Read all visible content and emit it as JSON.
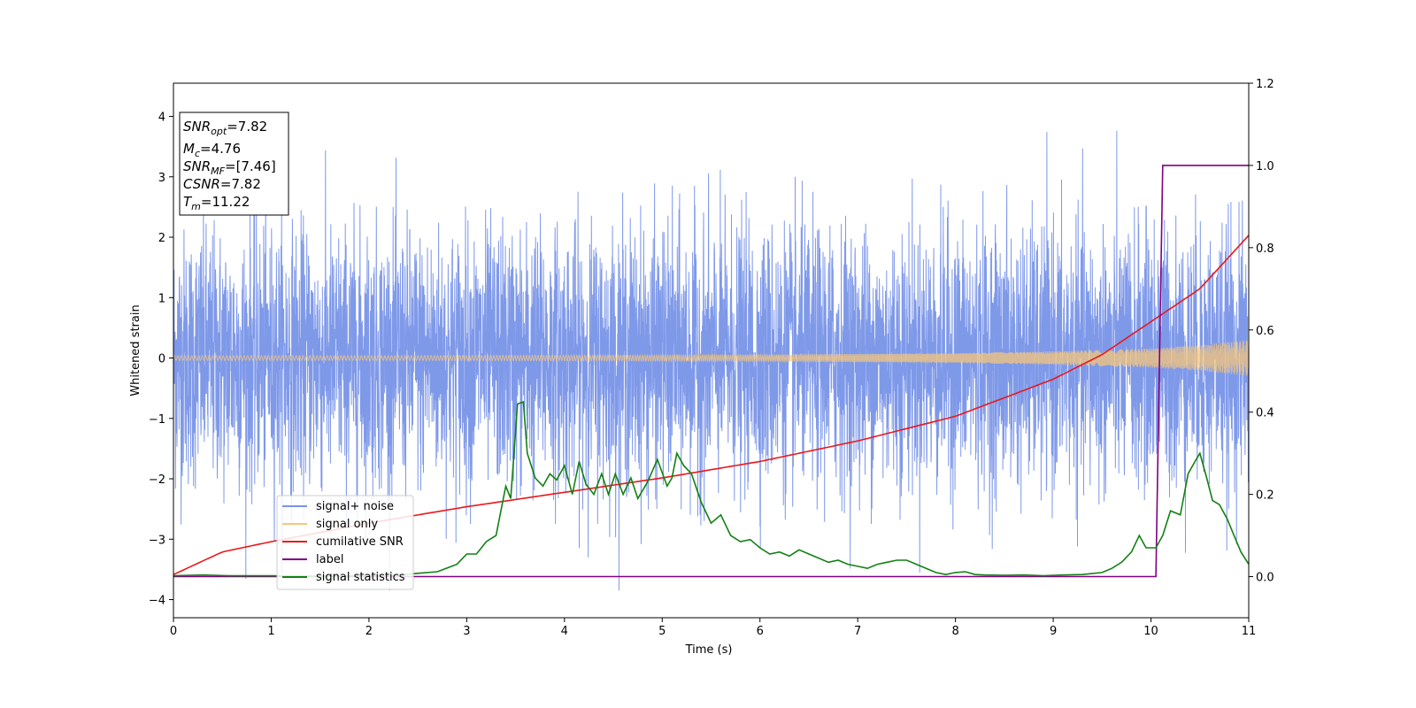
{
  "chart_data": {
    "type": "line",
    "xlabel": "Time (s)",
    "ylabel": "Whitened strain",
    "xlim": [
      0,
      11
    ],
    "ylim": [
      -4.3,
      4.55
    ],
    "y2lim": [
      -0.1,
      1.2
    ],
    "x_ticks": [
      0,
      1,
      2,
      3,
      4,
      5,
      6,
      7,
      8,
      9,
      10,
      11
    ],
    "x_tick_labels": [
      "0",
      "1",
      "2",
      "3",
      "4",
      "5",
      "6",
      "7",
      "8",
      "9",
      "10",
      "11"
    ],
    "y_ticks": [
      -4,
      -3,
      -2,
      -1,
      0,
      1,
      2,
      3,
      4
    ],
    "y_tick_labels": [
      "−4",
      "−3",
      "−2",
      "−1",
      "0",
      "1",
      "2",
      "3",
      "4"
    ],
    "y2_ticks": [
      0,
      0.2,
      0.4,
      0.6,
      0.8,
      1.0,
      1.2
    ],
    "y2_tick_labels": [
      "0.0",
      "0.2",
      "0.4",
      "0.6",
      "0.8",
      "1.0",
      "1.2"
    ],
    "grid": false,
    "legend_placement": "lower-left",
    "info_box": {
      "line1_base": "SNR",
      "line1_sub": "opt",
      "line1_value": "=7.82",
      "line2_base": "M",
      "line2_sub": "c",
      "line2_value": "=4.76",
      "line3_base": "SNR",
      "line3_sub": "MF",
      "line3_value": "=[7.46]",
      "line4_base": "CSNR",
      "line4_value": "=7.82",
      "line5_base": "T",
      "line5_sub": "m",
      "line5_value": "=11.22"
    },
    "series": [
      {
        "name": "signal+ noise",
        "axis": "left",
        "color": "#7894e8",
        "description_values": {
          "typical_range": [
            -2.2,
            2.2
          ],
          "max_peak": 4.15,
          "min_trough": -3.85
        }
      },
      {
        "name": "signal only",
        "axis": "left",
        "color": "#f5c77a",
        "amplitude_envelope": {
          "x": [
            0,
            2,
            4,
            6,
            8,
            9,
            10,
            10.5,
            11
          ],
          "amp": [
            0.04,
            0.04,
            0.045,
            0.055,
            0.08,
            0.11,
            0.16,
            0.21,
            0.3
          ]
        }
      },
      {
        "name": "cumilative SNR",
        "axis": "right",
        "color": "#e8191c",
        "x": [
          0,
          0.5,
          1,
          2,
          3,
          4,
          5,
          6,
          7,
          8,
          9,
          9.5,
          10,
          10.5,
          11
        ],
        "y": [
          0.005,
          0.06,
          0.085,
          0.13,
          0.17,
          0.205,
          0.24,
          0.28,
          0.33,
          0.39,
          0.48,
          0.54,
          0.62,
          0.7,
          0.83
        ]
      },
      {
        "name": "label",
        "axis": "right",
        "color": "#800080",
        "x": [
          0,
          10.05,
          10.12,
          11
        ],
        "y": [
          0,
          0,
          1,
          1
        ]
      },
      {
        "name": "signal statistics",
        "axis": "right",
        "color": "#138013",
        "x": [
          0,
          0.3,
          0.6,
          1,
          1.5,
          2,
          2.3,
          2.5,
          2.7,
          2.9,
          3.0,
          3.1,
          3.2,
          3.3,
          3.4,
          3.45,
          3.52,
          3.58,
          3.62,
          3.7,
          3.78,
          3.85,
          3.92,
          4.0,
          4.08,
          4.15,
          4.22,
          4.3,
          4.38,
          4.45,
          4.52,
          4.6,
          4.68,
          4.75,
          4.85,
          4.95,
          5.05,
          5.1,
          5.15,
          5.22,
          5.3,
          5.4,
          5.5,
          5.6,
          5.7,
          5.8,
          5.9,
          6.0,
          6.1,
          6.2,
          6.3,
          6.4,
          6.5,
          6.6,
          6.7,
          6.8,
          6.9,
          7.0,
          7.1,
          7.2,
          7.3,
          7.4,
          7.5,
          7.6,
          7.7,
          7.8,
          7.9,
          8.0,
          8.1,
          8.2,
          8.3,
          8.5,
          8.7,
          8.9,
          9.1,
          9.3,
          9.5,
          9.6,
          9.7,
          9.8,
          9.88,
          9.95,
          10.05,
          10.12,
          10.2,
          10.3,
          10.38,
          10.45,
          10.5,
          10.57,
          10.63,
          10.7,
          10.78,
          10.85,
          10.92,
          11.0
        ],
        "y": [
          0.002,
          0.004,
          0.002,
          0.002,
          0.001,
          0.002,
          0.003,
          0.008,
          0.012,
          0.03,
          0.055,
          0.055,
          0.085,
          0.1,
          0.22,
          0.19,
          0.42,
          0.425,
          0.3,
          0.24,
          0.22,
          0.25,
          0.235,
          0.27,
          0.2,
          0.28,
          0.225,
          0.2,
          0.25,
          0.2,
          0.25,
          0.2,
          0.24,
          0.19,
          0.23,
          0.285,
          0.22,
          0.24,
          0.3,
          0.27,
          0.25,
          0.18,
          0.13,
          0.15,
          0.1,
          0.085,
          0.09,
          0.07,
          0.055,
          0.06,
          0.05,
          0.065,
          0.055,
          0.045,
          0.035,
          0.04,
          0.03,
          0.025,
          0.02,
          0.03,
          0.035,
          0.04,
          0.04,
          0.03,
          0.02,
          0.01,
          0.005,
          0.01,
          0.012,
          0.005,
          0.004,
          0.003,
          0.004,
          0.002,
          0.004,
          0.005,
          0.01,
          0.02,
          0.035,
          0.06,
          0.1,
          0.07,
          0.07,
          0.1,
          0.16,
          0.15,
          0.25,
          0.28,
          0.3,
          0.24,
          0.185,
          0.175,
          0.14,
          0.1,
          0.06,
          0.03
        ]
      }
    ]
  }
}
